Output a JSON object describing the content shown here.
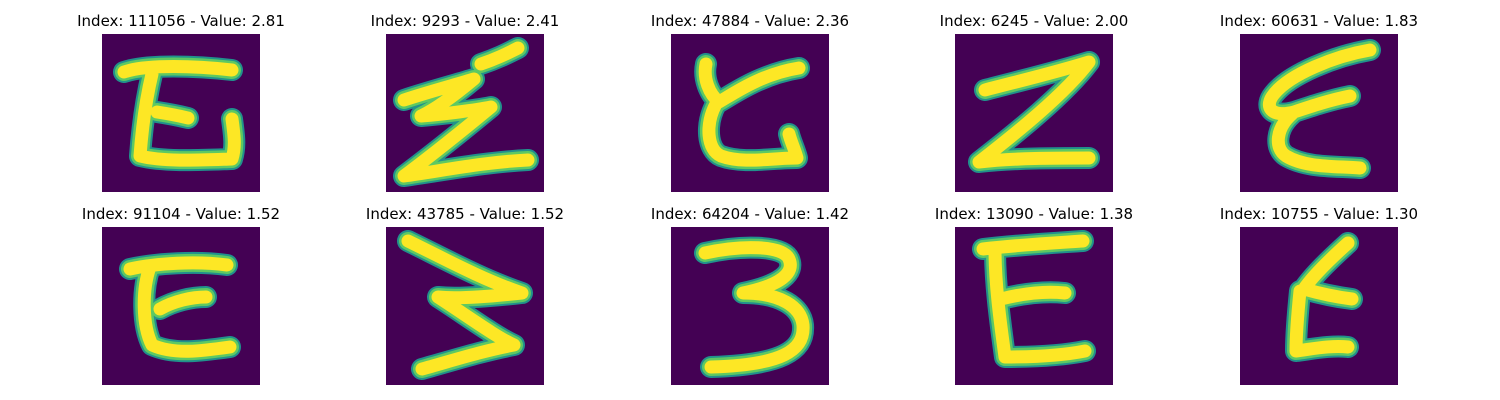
{
  "colors": {
    "background": "#440154",
    "stroke_edge": "#21918c",
    "stroke_mid": "#5ec962",
    "stroke_core": "#fde725"
  },
  "panels": [
    {
      "title": "Index: 111056 - Value: 2.81",
      "glyph": "curly-z-shape"
    },
    {
      "title": "Index: 9293 - Value: 2.41",
      "glyph": "lightning-z-shape"
    },
    {
      "title": "Index: 47884 - Value: 2.36",
      "glyph": "c-with-crossbar-shape"
    },
    {
      "title": "Index: 6245 - Value: 2.00",
      "glyph": "z-shape"
    },
    {
      "title": "Index: 60631 - Value: 1.83",
      "glyph": "epsilon-shape"
    },
    {
      "title": "Index: 91104 - Value: 1.52",
      "glyph": "c-with-crossbar-shape"
    },
    {
      "title": "Index: 43785 - Value: 1.52",
      "glyph": "zigzag-shape"
    },
    {
      "title": "Index: 64204 - Value: 1.42",
      "glyph": "three-shape"
    },
    {
      "title": "Index: 13090 - Value: 1.38",
      "glyph": "e-shape"
    },
    {
      "title": "Index: 10755 - Value: 1.30",
      "glyph": "small-e-shape"
    }
  ]
}
